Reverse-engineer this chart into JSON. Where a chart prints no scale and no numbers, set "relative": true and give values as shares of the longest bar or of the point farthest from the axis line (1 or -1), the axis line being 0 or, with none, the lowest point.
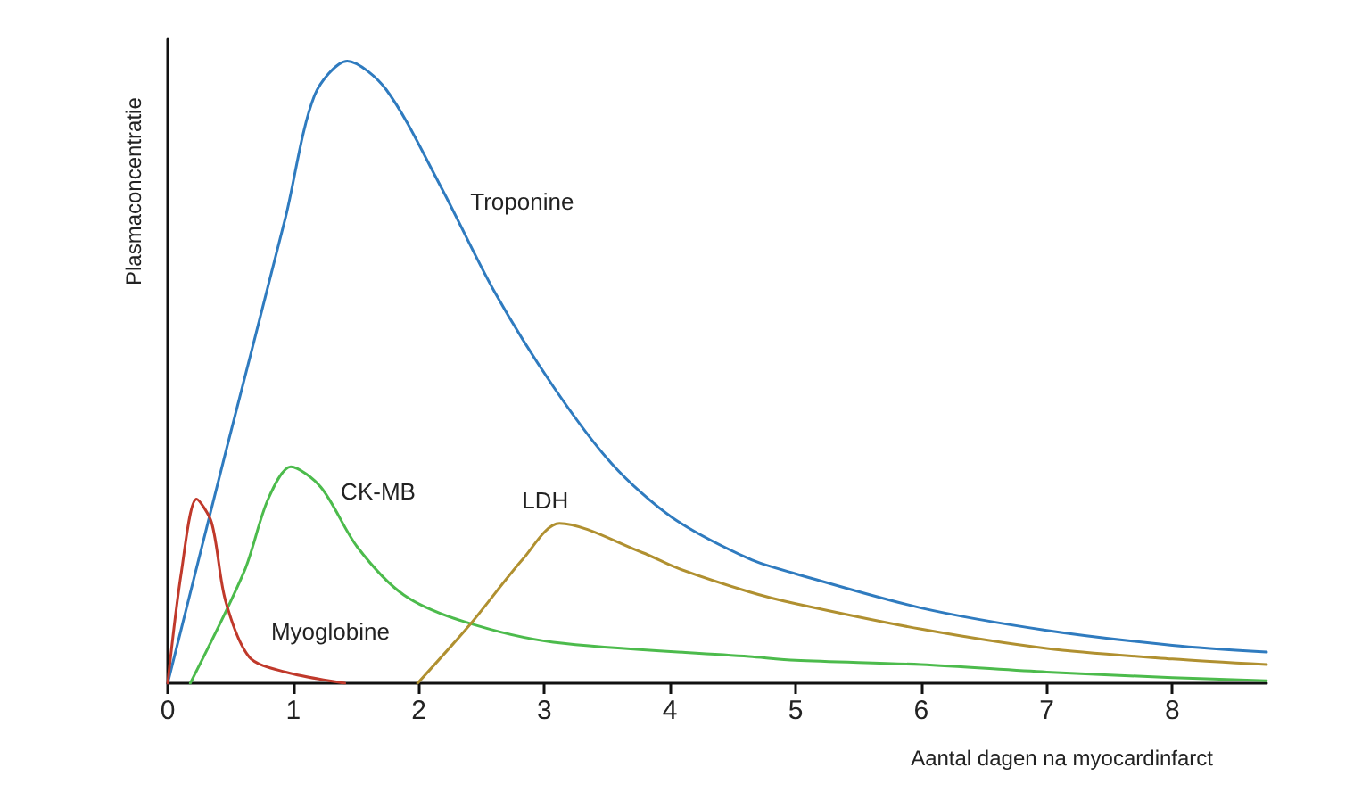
{
  "chart_data": {
    "type": "line",
    "xlabel": "Aantal dagen na myocardinfarct",
    "ylabel": "Plasmaconcentratie",
    "relative": true,
    "xlim": [
      0,
      8.75
    ],
    "xticks": [
      0,
      1,
      2,
      3,
      4,
      5,
      6,
      7,
      8
    ],
    "marker": "none",
    "line_style": "solid",
    "series": [
      {
        "name": "Troponine",
        "color": "#2f7bbf",
        "x": [
          0,
          0.46,
          0.94,
          1.17,
          1.43,
          1.74,
          2.17,
          2.6,
          3.07,
          3.54,
          4.02,
          4.63,
          5,
          6,
          7,
          8,
          8.75
        ],
        "values": [
          0,
          0.37,
          0.75,
          0.945,
          1,
          0.954,
          0.8,
          0.63,
          0.477,
          0.352,
          0.266,
          0.2,
          0.176,
          0.121,
          0.085,
          0.061,
          0.05
        ]
      },
      {
        "name": "CK-MB",
        "color": "#4cbb4c",
        "x": [
          0.18,
          0.61,
          0.8,
          0.98,
          1.22,
          1.51,
          1.88,
          2.36,
          3.07,
          4.63,
          5,
          6,
          7,
          8,
          8.75
        ],
        "values": [
          0,
          0.18,
          0.296,
          0.348,
          0.315,
          0.219,
          0.142,
          0.099,
          0.066,
          0.043,
          0.037,
          0.03,
          0.018,
          0.009,
          0.004
        ]
      },
      {
        "name": "Myoglobine",
        "color": "#c0392b",
        "x": [
          0,
          0.11,
          0.23,
          0.35,
          0.46,
          0.65,
          0.94,
          1.41
        ],
        "values": [
          0,
          0.18,
          0.296,
          0.258,
          0.133,
          0.042,
          0.018,
          0
        ]
      },
      {
        "name": "LDH",
        "color": "#b09030",
        "x": [
          1.99,
          2.41,
          2.83,
          3.12,
          3.78,
          4.06,
          4.63,
          5,
          6,
          7,
          8,
          8.75
        ],
        "values": [
          0,
          0.095,
          0.2,
          0.257,
          0.21,
          0.185,
          0.147,
          0.128,
          0.087,
          0.056,
          0.039,
          0.03
        ]
      }
    ]
  }
}
